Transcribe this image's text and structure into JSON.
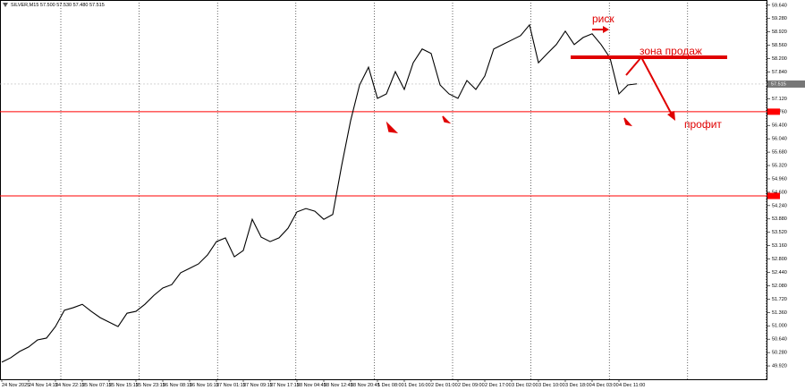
{
  "chart_data": {
    "type": "line",
    "title": "SILVER,M15  57.500 57.530 57.480 57.515",
    "color": "#000000",
    "values": [
      50.02,
      50.14,
      50.31,
      50.43,
      50.62,
      50.67,
      50.98,
      51.42,
      51.49,
      51.58,
      51.39,
      51.22,
      51.1,
      50.98,
      51.34,
      51.39,
      51.58,
      51.82,
      52.02,
      52.11,
      52.43,
      52.55,
      52.67,
      52.91,
      53.27,
      53.37,
      52.86,
      53.03,
      53.87,
      53.39,
      53.27,
      53.37,
      53.63,
      54.07,
      54.16,
      54.09,
      53.87,
      54.0,
      55.32,
      56.53,
      57.49,
      57.97,
      57.13,
      57.25,
      57.85,
      57.37,
      58.09,
      58.46,
      58.34,
      57.49,
      57.25,
      57.13,
      57.61,
      57.37,
      57.73,
      58.46,
      58.58,
      58.7,
      58.82,
      59.11,
      58.09,
      58.34,
      58.58,
      58.94,
      58.58,
      58.77,
      58.87,
      58.58,
      58.22,
      57.25,
      57.49,
      57.52
    ],
    "ylim": [
      49.56,
      59.78
    ],
    "yticks": [
      {
        "value": 49.92,
        "label": "49.920"
      },
      {
        "value": 50.28,
        "label": "50.280"
      },
      {
        "value": 50.64,
        "label": "50.640"
      },
      {
        "value": 51.0,
        "label": "51.000"
      },
      {
        "value": 51.36,
        "label": "51.360"
      },
      {
        "value": 51.72,
        "label": "51.720"
      },
      {
        "value": 52.08,
        "label": "52.080"
      },
      {
        "value": 52.44,
        "label": "52.440"
      },
      {
        "value": 52.8,
        "label": "52.800"
      },
      {
        "value": 53.16,
        "label": "53.160"
      },
      {
        "value": 53.52,
        "label": "53.520"
      },
      {
        "value": 53.88,
        "label": "53.880"
      },
      {
        "value": 54.24,
        "label": "54.240"
      },
      {
        "value": 54.6,
        "label": "54.600"
      },
      {
        "value": 54.96,
        "label": "54.960"
      },
      {
        "value": 55.32,
        "label": "55.320"
      },
      {
        "value": 55.68,
        "label": "55.680"
      },
      {
        "value": 56.04,
        "label": "56.040"
      },
      {
        "value": 56.4,
        "label": "56.400"
      },
      {
        "value": 56.76,
        "label": "56.760"
      },
      {
        "value": 57.12,
        "label": "57.120"
      },
      {
        "value": 57.48,
        "label": "57.480"
      },
      {
        "value": 57.84,
        "label": "57.840"
      },
      {
        "value": 58.2,
        "label": "58.200"
      },
      {
        "value": 58.56,
        "label": "58.560"
      },
      {
        "value": 58.92,
        "label": "58.920"
      },
      {
        "value": 59.28,
        "label": "59.280"
      },
      {
        "value": 59.64,
        "label": "59.640"
      }
    ],
    "xticks": [
      "24 Nov 2025",
      "24 Nov 14:15",
      "24 Nov 22:15",
      "25 Nov 07:15",
      "25 Nov 15:15",
      "25 Nov 23:15",
      "26 Nov 08:15",
      "26 Nov 16:15",
      "27 Nov 01:15",
      "27 Nov 09:15",
      "27 Nov 17:15",
      "28 Nov 04:45",
      "28 Nov 12:45",
      "28 Nov 20:45",
      "1 Dec 08:00",
      "1 Dec 16:00",
      "2 Dec 01:00",
      "2 Dec 09:00",
      "2 Dec 17:00",
      "3 Dec 02:00",
      "3 Dec 10:00",
      "3 Dec 18:00",
      "4 Dec 03:00",
      "4 Dec 11:00"
    ],
    "levels": [
      56.77,
      54.5
    ],
    "level_color": "#ff0000",
    "last_price": 57.515,
    "annotations": [
      "риск",
      "зона продаж",
      "профит"
    ]
  }
}
